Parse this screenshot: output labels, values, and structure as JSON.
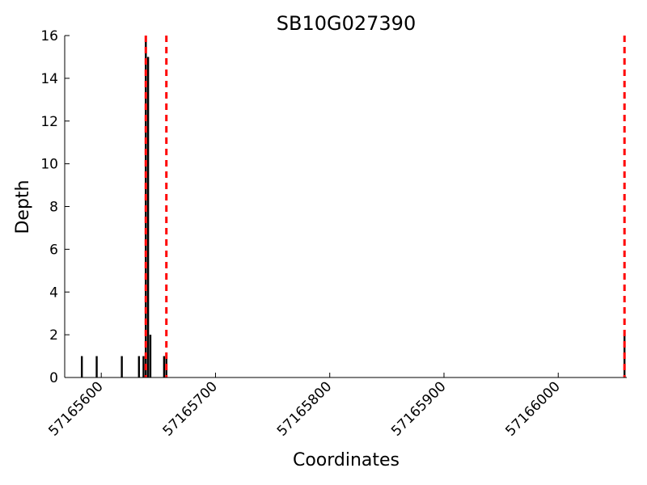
{
  "chart_data": {
    "type": "bar",
    "title": "SB10G027390",
    "xlabel": "Coordinates",
    "ylabel": "Depth",
    "xlim": [
      57165568,
      57166060
    ],
    "ylim": [
      0,
      16
    ],
    "x_ticks": [
      57165600,
      57165700,
      57165800,
      57165900,
      57166000
    ],
    "y_ticks": [
      0,
      2,
      4,
      6,
      8,
      10,
      12,
      14,
      16
    ],
    "depth_bars": [
      {
        "x": 57165583,
        "y": 1
      },
      {
        "x": 57165596,
        "y": 1
      },
      {
        "x": 57165618,
        "y": 1
      },
      {
        "x": 57165633,
        "y": 1
      },
      {
        "x": 57165637,
        "y": 1
      },
      {
        "x": 57165639,
        "y": 16
      },
      {
        "x": 57165641,
        "y": 15
      },
      {
        "x": 57165643,
        "y": 2
      },
      {
        "x": 57165655,
        "y": 1
      },
      {
        "x": 57165657,
        "y": 1
      },
      {
        "x": 57166058,
        "y": 2
      }
    ],
    "marker_lines": [
      57165639,
      57165657,
      57166058
    ],
    "colors": {
      "bars": "#000000",
      "markers": "#ff0000"
    },
    "grid": false
  }
}
